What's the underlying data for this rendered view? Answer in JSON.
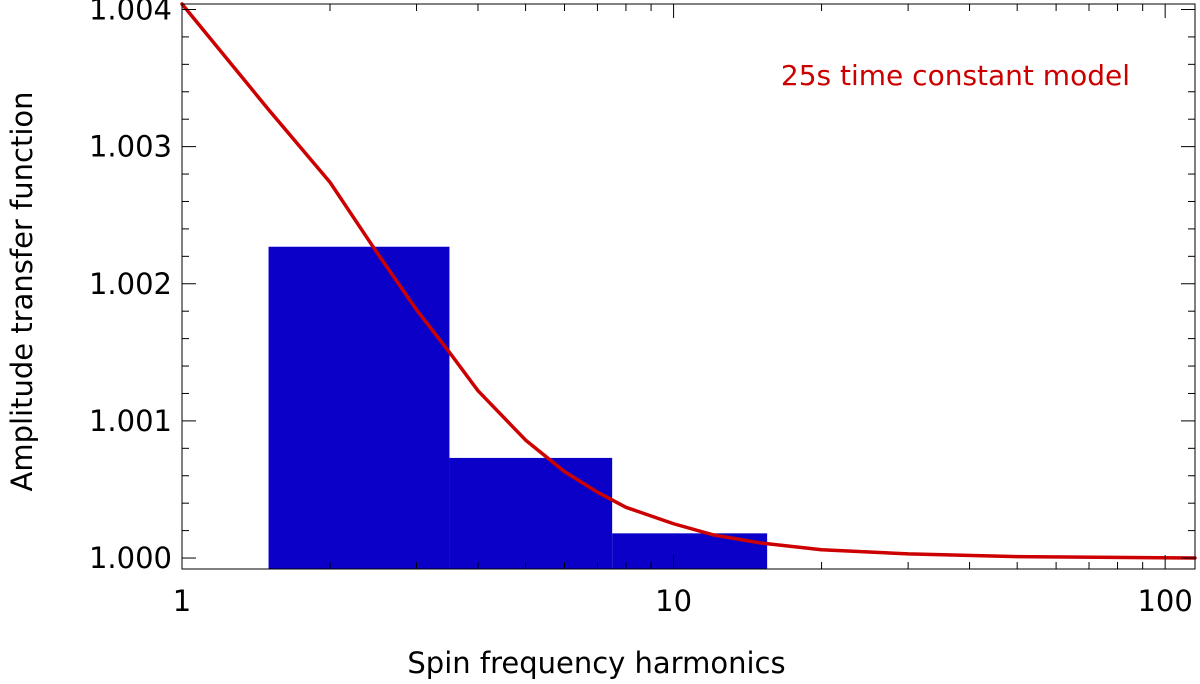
{
  "chart_data": {
    "type": "bar",
    "xlabel": "Spin frequency harmonics",
    "ylabel": "Amplitude transfer function",
    "xscale": "log",
    "xlim": [
      1,
      115
    ],
    "ylim": [
      0.99992,
      1.00404
    ],
    "x_ticks": [
      1,
      10,
      100
    ],
    "x_tick_labels": [
      "1",
      "10",
      "100"
    ],
    "y_ticks": [
      1.0,
      1.001,
      1.002,
      1.003,
      1.004
    ],
    "y_tick_labels": [
      "1.000",
      "1.001",
      "1.002",
      "1.003",
      "1.004"
    ],
    "grid": false,
    "bars": {
      "color": "#0a00c8",
      "bins": [
        {
          "x_start": 1.5,
          "x_end": 3.5,
          "value": 1.00227
        },
        {
          "x_start": 3.5,
          "x_end": 7.5,
          "value": 1.00073
        },
        {
          "x_start": 7.5,
          "x_end": 15.5,
          "value": 1.00018
        }
      ]
    },
    "series": [
      {
        "name": "25s time constant model",
        "type": "line",
        "color": "#cc0000",
        "x": [
          1,
          1.5,
          2,
          2.5,
          3,
          3.5,
          4,
          5,
          6,
          7,
          8,
          10,
          12,
          15,
          20,
          30,
          50,
          115
        ],
        "y": [
          1.00404,
          1.00327,
          1.00274,
          1.00222,
          1.00181,
          1.0015,
          1.00122,
          1.00086,
          1.00063,
          1.00048,
          1.00037,
          1.00025,
          1.00017,
          1.00011,
          1.00006,
          1.00003,
          1.00001,
          1.0
        ]
      }
    ],
    "annotation": {
      "text": "25s time constant model",
      "color": "#cc0000",
      "placement": "top-right"
    }
  }
}
